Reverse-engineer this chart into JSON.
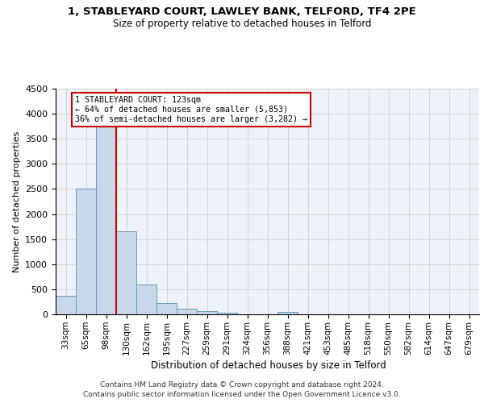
{
  "title1": "1, STABLEYARD COURT, LAWLEY BANK, TELFORD, TF4 2PE",
  "title2": "Size of property relative to detached houses in Telford",
  "xlabel": "Distribution of detached houses by size in Telford",
  "ylabel": "Number of detached properties",
  "categories": [
    "33sqm",
    "65sqm",
    "98sqm",
    "130sqm",
    "162sqm",
    "195sqm",
    "227sqm",
    "259sqm",
    "291sqm",
    "324sqm",
    "356sqm",
    "388sqm",
    "421sqm",
    "453sqm",
    "485sqm",
    "518sqm",
    "550sqm",
    "582sqm",
    "614sqm",
    "647sqm",
    "679sqm"
  ],
  "values": [
    370,
    2500,
    3750,
    1650,
    590,
    225,
    105,
    60,
    35,
    0,
    0,
    55,
    0,
    0,
    0,
    0,
    0,
    0,
    0,
    0,
    0
  ],
  "bar_color": "#c8d8ea",
  "bar_edgecolor": "#6899bb",
  "vline_x": 2.5,
  "vline_color": "#cc0000",
  "annotation_line1": "1 STABLEYARD COURT: 123sqm",
  "annotation_line2": "← 64% of detached houses are smaller (5,853)",
  "annotation_line3": "36% of semi-detached houses are larger (3,282) →",
  "annotation_box_facecolor": "#ffffff",
  "annotation_box_edgecolor": "#cc0000",
  "ylim": [
    0,
    4500
  ],
  "yticks": [
    0,
    500,
    1000,
    1500,
    2000,
    2500,
    3000,
    3500,
    4000,
    4500
  ],
  "footer_line1": "Contains HM Land Registry data © Crown copyright and database right 2024.",
  "footer_line2": "Contains public sector information licensed under the Open Government Licence v3.0.",
  "bg_color": "#ffffff",
  "grid_color": "#cccccc",
  "plot_bg_color": "#edf2f8"
}
